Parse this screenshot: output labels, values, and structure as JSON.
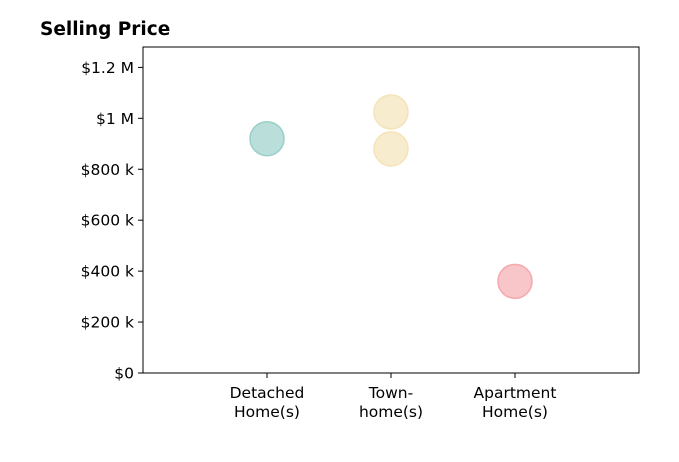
{
  "chart_data": {
    "type": "scatter",
    "title": "Selling Price",
    "xlabel": "",
    "ylabel": "",
    "categories": [
      [
        "Detached",
        "Home(s)"
      ],
      [
        "Town-",
        "home(s)"
      ],
      [
        "Apartment",
        "Home(s)"
      ]
    ],
    "xlim": [
      -1,
      3
    ],
    "ylim": [
      0,
      1280000
    ],
    "yticks": [
      0,
      200000,
      400000,
      600000,
      800000,
      1000000,
      1200000
    ],
    "ytick_labels": [
      "$0",
      "$200 k",
      "$400 k",
      "$600 k",
      "$800 k",
      "$1 M",
      "$1.2 M"
    ],
    "grid": false,
    "legend": "none",
    "points": [
      {
        "category": 0,
        "value": 920000,
        "color": "#9ad0c8"
      },
      {
        "category": 1,
        "value": 1025000,
        "color": "#f5e3b8"
      },
      {
        "category": 1,
        "value": 880000,
        "color": "#f5e3b8"
      },
      {
        "category": 2,
        "value": 360000,
        "color": "#f5a9ae"
      }
    ]
  }
}
